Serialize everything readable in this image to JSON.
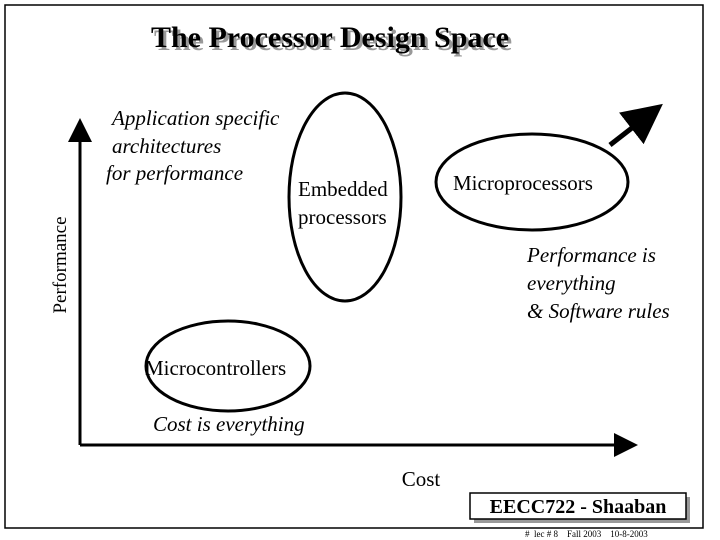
{
  "header": {
    "title": "The Processor Design Space"
  },
  "axes": {
    "y_label": "Performance",
    "x_label": "Cost"
  },
  "annotations": {
    "application_specific": [
      "Application specific",
      "architectures",
      "for performance"
    ],
    "performance_is_everything": [
      "Performance is",
      "everything",
      "& Software rules"
    ],
    "cost_is_everything": "Cost is everything"
  },
  "nodes": [
    {
      "label": [
        "Embedded",
        "processors"
      ]
    },
    {
      "label": [
        "Microprocessors"
      ]
    },
    {
      "label": [
        "Microcontrollers"
      ]
    }
  ],
  "footer": {
    "course": "EECC722 - Shaaban",
    "info": "#  lec # 8    Fall 2003    10-8-2003"
  }
}
